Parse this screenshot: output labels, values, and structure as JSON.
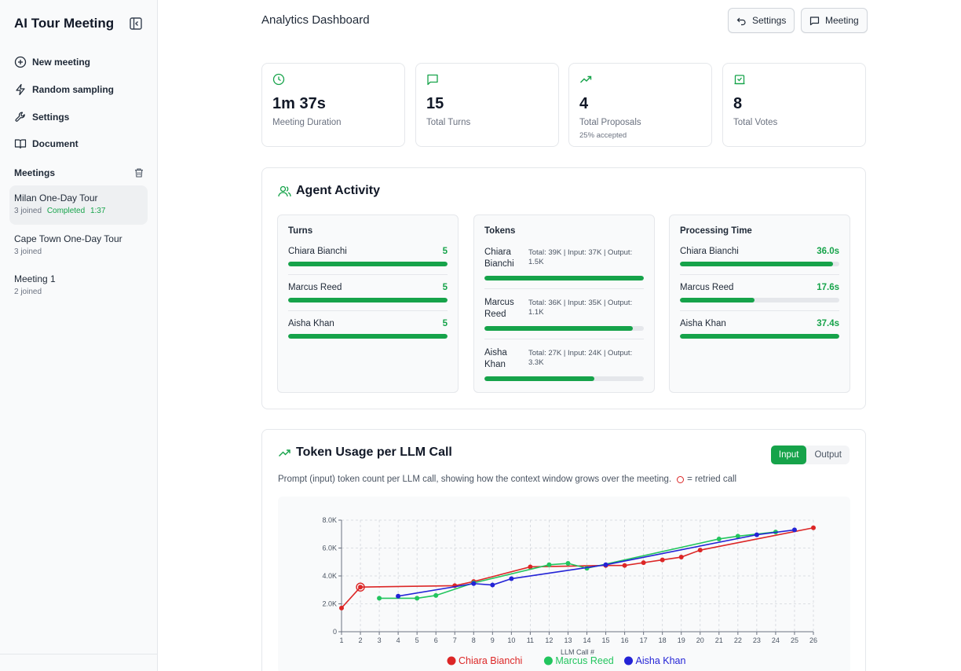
{
  "sidebar": {
    "app_title": "AI Tour Meeting",
    "nav": [
      {
        "label": "New meeting",
        "icon": "plus-circle-icon"
      },
      {
        "label": "Random sampling",
        "icon": "lightning-icon"
      },
      {
        "label": "Settings",
        "icon": "wrench-icon"
      },
      {
        "label": "Document",
        "icon": "book-icon"
      }
    ],
    "meetings_title": "Meetings",
    "meetings": [
      {
        "name": "Milan One-Day Tour",
        "joined": "3 joined",
        "status": "Completed",
        "duration": "1:37"
      },
      {
        "name": "Cape Town One-Day Tour",
        "joined": "3 joined",
        "status": "",
        "duration": ""
      },
      {
        "name": "Meeting 1",
        "joined": "2 joined",
        "status": "",
        "duration": ""
      }
    ]
  },
  "header": {
    "title": "Analytics Dashboard",
    "settings_label": "Settings",
    "meeting_label": "Meeting"
  },
  "stats": [
    {
      "value": "1m 37s",
      "label": "Meeting Duration",
      "sub": "",
      "icon": "clock-icon"
    },
    {
      "value": "15",
      "label": "Total Turns",
      "sub": "",
      "icon": "chat-icon"
    },
    {
      "value": "4",
      "label": "Total Proposals",
      "sub": "25% accepted",
      "icon": "trending-up-icon"
    },
    {
      "value": "8",
      "label": "Total Votes",
      "sub": "",
      "icon": "vote-icon"
    }
  ],
  "agent_activity": {
    "title": "Agent Activity",
    "turns": {
      "title": "Turns",
      "rows": [
        {
          "name": "Chiara Bianchi",
          "value": "5",
          "fraction": 1.0
        },
        {
          "name": "Marcus Reed",
          "value": "5",
          "fraction": 1.0
        },
        {
          "name": "Aisha Khan",
          "value": "5",
          "fraction": 1.0
        }
      ]
    },
    "tokens": {
      "title": "Tokens",
      "rows": [
        {
          "name": "Chiara Bianchi",
          "detail": "Total: 39K | Input: 37K | Output: 1.5K",
          "fraction": 1.0
        },
        {
          "name": "Marcus Reed",
          "detail": "Total: 36K | Input: 35K | Output: 1.1K",
          "fraction": 0.93
        },
        {
          "name": "Aisha Khan",
          "detail": "Total: 27K | Input: 24K | Output: 3.3K",
          "fraction": 0.69
        }
      ]
    },
    "processing": {
      "title": "Processing Time",
      "rows": [
        {
          "name": "Chiara Bianchi",
          "value": "36.0s",
          "fraction": 0.96
        },
        {
          "name": "Marcus Reed",
          "value": "17.6s",
          "fraction": 0.47
        },
        {
          "name": "Aisha Khan",
          "value": "37.4s",
          "fraction": 1.0
        }
      ]
    }
  },
  "token_usage": {
    "title": "Token Usage per LLM Call",
    "toggle_input": "Input",
    "toggle_output": "Output",
    "description": "Prompt (input) token count per LLM call, showing how the context window grows over the meeting.",
    "retry_note": "= retried call"
  },
  "chart_data": {
    "type": "line",
    "xlabel": "LLM Call #",
    "ylabel": "",
    "xlim": [
      1,
      26
    ],
    "ylim": [
      0,
      8000
    ],
    "yticks": [
      0,
      2000,
      4000,
      6000,
      8000
    ],
    "ytick_labels": [
      "0",
      "2.0K",
      "4.0K",
      "6.0K",
      "8.0K"
    ],
    "xticks": [
      1,
      2,
      3,
      4,
      5,
      6,
      7,
      8,
      9,
      10,
      11,
      12,
      13,
      14,
      15,
      16,
      17,
      18,
      19,
      20,
      21,
      22,
      23,
      24,
      25,
      26
    ],
    "grid": true,
    "legend_position": "bottom",
    "series": [
      {
        "name": "Chiara Bianchi",
        "color": "#dc2626",
        "points": [
          [
            1,
            1700
          ],
          [
            2,
            3200
          ],
          [
            7,
            3300
          ],
          [
            8,
            3600
          ],
          [
            11,
            4650
          ],
          [
            15,
            4750
          ],
          [
            16,
            4750
          ],
          [
            17,
            4950
          ],
          [
            18,
            5150
          ],
          [
            19,
            5350
          ],
          [
            20,
            5850
          ],
          [
            26,
            7450
          ]
        ],
        "retried": [
          2
        ]
      },
      {
        "name": "Marcus Reed",
        "color": "#22c55e",
        "points": [
          [
            3,
            2400
          ],
          [
            5,
            2400
          ],
          [
            6,
            2600
          ],
          [
            8,
            3500
          ],
          [
            12,
            4800
          ],
          [
            13,
            4900
          ],
          [
            14,
            4550
          ],
          [
            21,
            6650
          ],
          [
            22,
            6850
          ],
          [
            24,
            7150
          ]
        ],
        "retried": []
      },
      {
        "name": "Aisha Khan",
        "color": "#2323d6",
        "points": [
          [
            4,
            2550
          ],
          [
            8,
            3450
          ],
          [
            9,
            3350
          ],
          [
            10,
            3800
          ],
          [
            15,
            4800
          ],
          [
            23,
            6950
          ],
          [
            25,
            7300
          ]
        ],
        "retried": []
      }
    ]
  }
}
